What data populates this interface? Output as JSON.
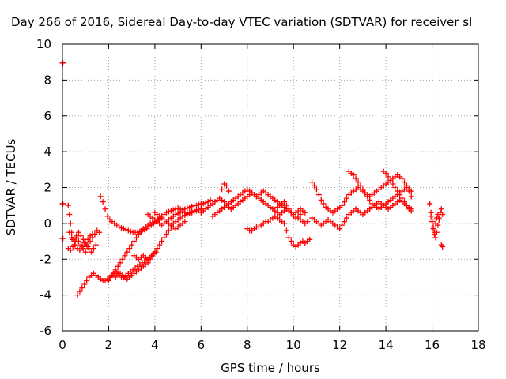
{
  "chart_data": {
    "type": "scatter",
    "title": "Day 266 of 2016, Sidereal Day-to-day VTEC variation (SDTVAR) for receiver sl",
    "xlabel": "GPS time / hours",
    "ylabel": "SDTVAR / TECUs",
    "xlim": [
      0,
      18
    ],
    "ylim": [
      -6,
      10
    ],
    "x_ticks": [
      "0",
      "2",
      "4",
      "6",
      "8",
      "10",
      "12",
      "14",
      "16",
      "18"
    ],
    "y_ticks": [
      "-6",
      "-4",
      "-2",
      "0",
      "2",
      "4",
      "6",
      "8",
      "10"
    ],
    "grid": true,
    "marker": "+",
    "colors": {
      "series": "#ff0000",
      "grid": "#a0a0a0"
    },
    "series": [
      {
        "x": [
          0.0,
          0.02
        ],
        "y": [
          8.95,
          8.95
        ]
      },
      {
        "x": [
          0.0,
          0.02
        ],
        "y": [
          1.1,
          1.1
        ]
      },
      {
        "x": [
          0.0,
          0.02
        ],
        "y": [
          -0.85,
          -0.85
        ]
      },
      {
        "x": [
          0.25,
          0.3,
          0.35,
          0.4,
          0.45,
          0.5,
          0.55,
          0.6,
          0.7,
          0.8,
          0.9,
          1.0,
          1.1,
          1.2,
          1.3,
          1.4,
          1.5,
          1.6
        ],
        "y": [
          1.0,
          0.5,
          0.0,
          -0.5,
          -0.9,
          -1.2,
          -1.0,
          -0.8,
          -1.0,
          -1.2,
          -1.4,
          -1.6,
          -1.3,
          -1.0,
          -0.8,
          -0.6,
          -0.4,
          -0.5
        ]
      },
      {
        "x": [
          0.25,
          0.35,
          0.45,
          0.55,
          0.65,
          0.75,
          0.85,
          0.95,
          1.05,
          1.15,
          1.25,
          1.35,
          1.45
        ],
        "y": [
          -1.4,
          -1.5,
          -1.3,
          -1.2,
          -1.4,
          -1.5,
          -1.3,
          -1.1,
          -1.2,
          -1.4,
          -1.6,
          -1.4,
          -1.2
        ]
      },
      {
        "x": [
          0.3,
          0.4,
          0.5,
          0.6,
          0.7,
          0.8,
          0.9,
          1.0,
          1.1,
          1.2,
          1.3
        ],
        "y": [
          -0.5,
          -0.8,
          -1.0,
          -0.7,
          -0.5,
          -0.7,
          -0.9,
          -1.1,
          -0.9,
          -0.7,
          -0.6
        ]
      },
      {
        "x": [
          0.65,
          0.75,
          0.85,
          0.95,
          1.05,
          1.15,
          1.25,
          1.35,
          1.45,
          1.55,
          1.65,
          1.75,
          1.85,
          1.95,
          2.05,
          2.15,
          2.25,
          2.35,
          2.45,
          2.55,
          2.65,
          2.75,
          2.85,
          2.95,
          3.05,
          3.15,
          3.25,
          3.35,
          3.45,
          3.55,
          3.65,
          3.75,
          3.85,
          3.95,
          4.05
        ],
        "y": [
          -4.0,
          -3.8,
          -3.6,
          -3.4,
          -3.2,
          -3.0,
          -2.9,
          -2.8,
          -2.9,
          -3.0,
          -3.1,
          -3.2,
          -3.2,
          -3.1,
          -3.0,
          -2.9,
          -2.8,
          -2.8,
          -2.9,
          -3.0,
          -3.0,
          -2.9,
          -2.8,
          -2.7,
          -2.6,
          -2.5,
          -2.4,
          -2.3,
          -2.2,
          -2.1,
          -2.0,
          -1.9,
          -1.8,
          -1.7,
          -1.6
        ]
      },
      {
        "x": [
          1.65,
          1.75,
          1.85,
          1.95,
          2.05,
          2.15,
          2.25,
          2.35,
          2.45,
          2.55,
          2.65,
          2.75,
          2.85,
          2.95,
          3.05,
          3.15,
          3.25,
          3.35,
          3.45,
          3.55,
          3.65,
          3.75,
          3.85,
          3.95,
          4.05,
          4.15,
          4.25
        ],
        "y": [
          1.5,
          1.2,
          0.8,
          0.4,
          0.2,
          0.1,
          0.0,
          -0.1,
          -0.2,
          -0.25,
          -0.3,
          -0.35,
          -0.4,
          -0.45,
          -0.5,
          -0.5,
          -0.5,
          -0.45,
          -0.4,
          -0.35,
          -0.3,
          -0.2,
          -0.1,
          0.0,
          0.1,
          0.2,
          0.3
        ]
      },
      {
        "x": [
          2.0,
          2.1,
          2.2,
          2.3,
          2.4,
          2.5,
          2.6,
          2.7,
          2.8,
          2.9,
          3.0,
          3.1,
          3.2,
          3.3,
          3.4,
          3.5,
          3.6,
          3.7,
          3.8,
          3.9,
          4.0,
          4.1,
          4.2,
          4.3,
          4.4,
          4.5,
          4.6,
          4.7,
          4.8,
          4.9,
          5.0,
          5.1,
          5.2,
          5.3,
          5.4,
          5.5,
          5.6,
          5.7,
          5.8,
          5.9,
          6.0,
          6.1,
          6.2,
          6.3,
          6.4
        ],
        "y": [
          -3.2,
          -3.0,
          -2.8,
          -2.6,
          -2.4,
          -2.2,
          -2.0,
          -1.8,
          -1.6,
          -1.4,
          -1.2,
          -1.0,
          -0.8,
          -0.6,
          -0.45,
          -0.3,
          -0.2,
          -0.1,
          0.0,
          0.05,
          0.1,
          0.2,
          0.3,
          0.4,
          0.5,
          0.6,
          0.65,
          0.7,
          0.75,
          0.8,
          0.85,
          0.8,
          0.75,
          0.8,
          0.85,
          0.9,
          0.95,
          1.0,
          1.0,
          1.05,
          1.1,
          1.1,
          1.15,
          1.2,
          1.3
        ]
      },
      {
        "x": [
          2.3,
          2.4,
          2.5,
          2.6,
          2.7,
          2.8,
          2.9,
          3.0,
          3.1,
          3.2,
          3.3,
          3.4,
          3.5,
          3.6,
          3.7,
          3.8,
          3.9,
          4.0,
          4.1,
          4.2,
          4.3,
          4.4,
          4.5,
          4.6,
          4.7,
          4.8,
          4.9,
          5.0,
          5.1,
          5.2,
          5.3,
          5.4,
          5.5,
          5.6,
          5.7,
          5.8,
          5.9,
          6.0
        ],
        "y": [
          -3.0,
          -2.8,
          -2.8,
          -2.9,
          -3.0,
          -3.1,
          -3.0,
          -2.9,
          -2.8,
          -2.7,
          -2.6,
          -2.5,
          -2.4,
          -2.3,
          -2.2,
          -2.0,
          -1.8,
          -1.6,
          -1.4,
          -1.2,
          -1.0,
          -0.8,
          -0.6,
          -0.4,
          -0.2,
          0.0,
          0.1,
          0.2,
          0.3,
          0.4,
          0.45,
          0.5,
          0.55,
          0.6,
          0.65,
          0.7,
          0.75,
          0.8
        ]
      },
      {
        "x": [
          3.1,
          3.2,
          3.3,
          3.4,
          3.5,
          3.6,
          3.7,
          3.8
        ],
        "y": [
          -1.8,
          -1.9,
          -2.0,
          -1.9,
          -1.8,
          -1.9,
          -2.0,
          -1.9
        ]
      },
      {
        "x": [
          4.0,
          4.1,
          4.2,
          4.3,
          4.4,
          4.5,
          4.6,
          4.7,
          4.8,
          4.9,
          5.0,
          5.1,
          5.2,
          5.3
        ],
        "y": [
          0.6,
          0.5,
          0.4,
          0.3,
          0.2,
          0.1,
          0.0,
          -0.1,
          -0.2,
          -0.3,
          -0.2,
          -0.1,
          0.0,
          0.1
        ]
      },
      {
        "x": [
          3.7,
          3.8,
          3.9,
          4.0,
          4.1,
          4.2,
          4.3,
          4.4,
          4.5,
          4.6,
          4.7,
          4.8,
          4.9,
          5.0,
          5.1,
          5.2,
          5.3,
          5.4,
          5.5,
          5.6,
          5.7,
          5.8
        ],
        "y": [
          0.5,
          0.4,
          0.3,
          0.2,
          0.1,
          0.0,
          -0.1,
          0.0,
          0.1,
          0.2,
          0.3,
          0.4,
          0.5,
          0.55,
          0.6,
          0.65,
          0.6,
          0.55,
          0.6,
          0.65,
          0.7,
          0.75
        ]
      },
      {
        "x": [
          6.0,
          6.1,
          6.2,
          6.3,
          6.4,
          6.5,
          6.6,
          6.7,
          6.8,
          6.9,
          7.0,
          7.1,
          7.2,
          7.3,
          7.4,
          7.5,
          7.6,
          7.7,
          7.8,
          7.9,
          8.0,
          8.1,
          8.2,
          8.3,
          8.4,
          8.5,
          8.6,
          8.7,
          8.8,
          8.9,
          9.0,
          9.1,
          9.2,
          9.3,
          9.4,
          9.5,
          9.6,
          9.7,
          9.8,
          9.9,
          10.0,
          10.1,
          10.2,
          10.3,
          10.4,
          10.5
        ],
        "y": [
          0.6,
          0.7,
          0.8,
          0.9,
          1.0,
          1.1,
          1.2,
          1.3,
          1.4,
          1.3,
          1.2,
          1.0,
          0.9,
          0.8,
          0.9,
          1.0,
          1.1,
          1.2,
          1.3,
          1.4,
          1.5,
          1.6,
          1.7,
          1.6,
          1.5,
          1.4,
          1.3,
          1.2,
          1.1,
          1.0,
          0.9,
          0.8,
          0.7,
          0.6,
          0.5,
          0.6,
          0.7,
          0.8,
          0.7,
          0.6,
          0.5,
          0.6,
          0.7,
          0.8,
          0.7,
          0.6
        ]
      },
      {
        "x": [
          6.5,
          6.6,
          6.7,
          6.8,
          6.9,
          7.0,
          7.1,
          7.2,
          7.3,
          7.4,
          7.5,
          7.6,
          7.7,
          7.8,
          7.9,
          8.0,
          8.1,
          8.2,
          8.3,
          8.4,
          8.5,
          8.6,
          8.7,
          8.8,
          8.9,
          9.0,
          9.1,
          9.2,
          9.3,
          9.4,
          9.5,
          9.6,
          9.7,
          9.8,
          9.9,
          10.0,
          10.1,
          10.2,
          10.3,
          10.4,
          10.5,
          10.6
        ],
        "y": [
          0.4,
          0.5,
          0.6,
          0.7,
          0.8,
          0.9,
          1.0,
          1.1,
          1.2,
          1.3,
          1.4,
          1.5,
          1.6,
          1.7,
          1.8,
          1.9,
          1.8,
          1.7,
          1.6,
          1.5,
          1.6,
          1.7,
          1.8,
          1.7,
          1.6,
          1.5,
          1.4,
          1.3,
          1.2,
          1.1,
          1.0,
          0.9,
          0.8,
          0.7,
          0.6,
          0.5,
          0.4,
          0.3,
          0.2,
          0.1,
          0.0,
          0.1
        ]
      },
      {
        "x": [
          6.9,
          7.0,
          7.1,
          7.2
        ],
        "y": [
          1.9,
          2.2,
          2.1,
          1.8
        ]
      },
      {
        "x": [
          8.0,
          8.1,
          8.2,
          8.3,
          8.4,
          8.5,
          8.6,
          8.7,
          8.8,
          8.9,
          9.0,
          9.1,
          9.2,
          9.3,
          9.4,
          9.5,
          9.6,
          9.7,
          9.8,
          9.9,
          10.0,
          10.1,
          10.2,
          10.3,
          10.4,
          10.5,
          10.6,
          10.7
        ],
        "y": [
          -0.3,
          -0.4,
          -0.4,
          -0.3,
          -0.2,
          -0.2,
          -0.1,
          0.0,
          0.1,
          0.1,
          0.2,
          0.3,
          0.4,
          0.3,
          0.2,
          0.1,
          0.0,
          -0.4,
          -0.8,
          -1.0,
          -1.2,
          -1.3,
          -1.2,
          -1.1,
          -1.0,
          -1.1,
          -1.0,
          -0.9
        ]
      },
      {
        "x": [
          9.3,
          9.4,
          9.5,
          9.6,
          9.7,
          9.8,
          9.9,
          10.0,
          10.1,
          10.2,
          10.3
        ],
        "y": [
          0.9,
          1.0,
          1.1,
          1.2,
          1.0,
          0.8,
          0.6,
          0.4,
          0.3,
          0.4,
          0.5
        ]
      },
      {
        "x": [
          10.8,
          10.9,
          11.0,
          11.1,
          11.2,
          11.3,
          11.4,
          11.5,
          11.6,
          11.7,
          11.8,
          11.9,
          12.0,
          12.1,
          12.2,
          12.3,
          12.4,
          12.5,
          12.6,
          12.7,
          12.8,
          12.9,
          13.0,
          13.1,
          13.2,
          13.3,
          13.4,
          13.5,
          13.6,
          13.7,
          13.8,
          13.9,
          14.0,
          14.1,
          14.2,
          14.3,
          14.4,
          14.5,
          14.6,
          14.7,
          14.8,
          14.9,
          15.0,
          15.1
        ],
        "y": [
          2.3,
          2.1,
          1.9,
          1.6,
          1.3,
          1.1,
          0.9,
          0.8,
          0.7,
          0.6,
          0.7,
          0.8,
          0.9,
          1.0,
          1.2,
          1.4,
          1.6,
          1.7,
          1.8,
          1.9,
          2.0,
          1.9,
          1.8,
          1.7,
          1.6,
          1.5,
          1.6,
          1.7,
          1.8,
          1.9,
          2.0,
          2.1,
          2.2,
          2.3,
          2.4,
          2.5,
          2.6,
          2.7,
          2.6,
          2.5,
          2.3,
          2.1,
          1.8,
          1.5
        ]
      },
      {
        "x": [
          10.8,
          10.9,
          11.0,
          11.1,
          11.2,
          11.3,
          11.4,
          11.5,
          11.6,
          11.7,
          11.8,
          11.9,
          12.0,
          12.1,
          12.2,
          12.3,
          12.4,
          12.5,
          12.6,
          12.7,
          12.8,
          12.9,
          13.0,
          13.1,
          13.2,
          13.3,
          13.4,
          13.5,
          13.6,
          13.7,
          13.8,
          13.9,
          14.0,
          14.1,
          14.2,
          14.3,
          14.4,
          14.5,
          14.6,
          14.7,
          14.8,
          14.9,
          15.0,
          15.1
        ],
        "y": [
          0.3,
          0.2,
          0.1,
          0.0,
          -0.1,
          0.0,
          0.1,
          0.2,
          0.1,
          0.0,
          -0.1,
          -0.2,
          -0.3,
          -0.1,
          0.1,
          0.3,
          0.5,
          0.6,
          0.7,
          0.8,
          0.7,
          0.6,
          0.5,
          0.6,
          0.7,
          0.8,
          0.9,
          1.0,
          1.1,
          1.2,
          1.1,
          1.0,
          0.9,
          0.8,
          0.9,
          1.0,
          1.1,
          1.2,
          1.3,
          1.2,
          1.1,
          1.0,
          0.9,
          0.8
        ]
      },
      {
        "x": [
          12.4,
          12.5,
          12.6,
          12.7,
          12.8,
          12.9,
          13.0,
          13.1,
          13.2,
          13.3,
          13.4,
          13.5,
          13.6,
          13.7,
          13.8,
          13.9,
          14.0,
          14.1,
          14.2,
          14.3,
          14.4,
          14.5,
          14.6,
          14.7,
          14.8,
          14.9,
          15.0,
          15.1
        ],
        "y": [
          2.9,
          2.8,
          2.7,
          2.5,
          2.3,
          2.1,
          1.9,
          1.7,
          1.5,
          1.3,
          1.1,
          1.0,
          0.9,
          0.8,
          0.9,
          1.0,
          1.1,
          1.2,
          1.3,
          1.4,
          1.5,
          1.6,
          1.7,
          1.8,
          1.9,
          2.0,
          1.9,
          1.8
        ]
      },
      {
        "x": [
          13.9,
          14.0,
          14.1,
          14.2,
          14.3,
          14.4,
          14.5,
          14.6,
          14.7,
          14.8,
          14.9,
          15.0,
          15.1
        ],
        "y": [
          2.9,
          2.8,
          2.6,
          2.4,
          2.2,
          2.0,
          1.8,
          1.6,
          1.4,
          1.2,
          1.0,
          0.8,
          0.7
        ]
      },
      {
        "x": [
          15.9,
          15.95,
          16.0,
          16.05,
          16.1,
          16.15,
          16.2,
          16.25,
          16.3,
          16.35,
          16.4,
          16.45
        ],
        "y": [
          1.1,
          0.6,
          0.2,
          -0.2,
          -0.6,
          -0.8,
          -0.5,
          -0.1,
          0.3,
          0.6,
          0.8,
          0.5
        ]
      },
      {
        "x": [
          15.95,
          16.0,
          16.05,
          16.1,
          16.15,
          16.2,
          16.25,
          16.3
        ],
        "y": [
          0.4,
          0.1,
          -0.3,
          -0.5,
          0.0,
          0.3,
          0.5,
          0.2
        ]
      },
      {
        "x": [
          16.4,
          16.45
        ],
        "y": [
          -1.2,
          -1.3
        ]
      }
    ]
  }
}
